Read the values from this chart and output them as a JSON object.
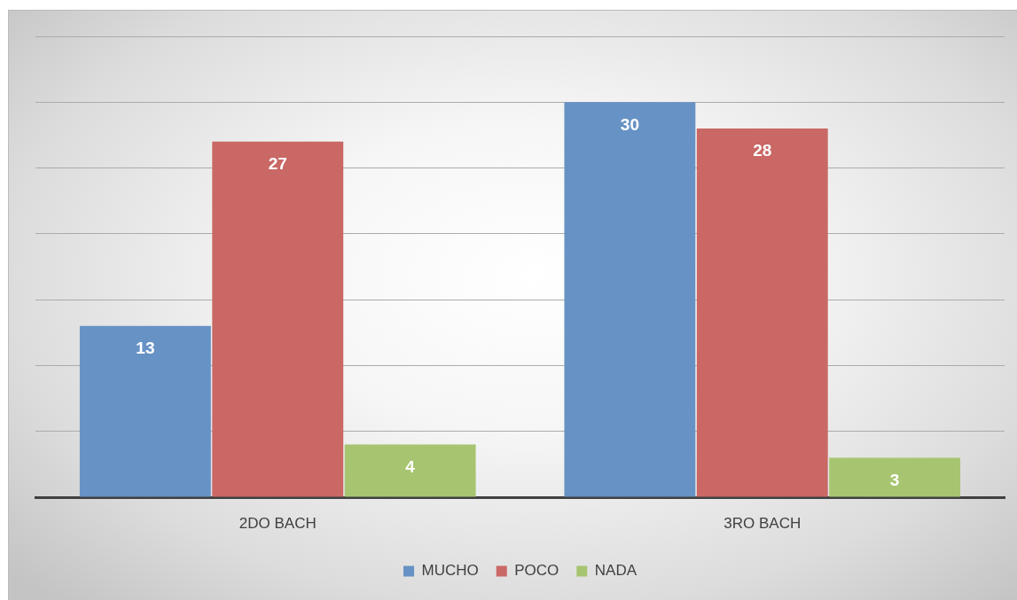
{
  "chart_data": {
    "type": "bar",
    "categories": [
      "2DO BACH",
      "3RO BACH"
    ],
    "series": [
      {
        "name": "MUCHO",
        "color": "#6792c5",
        "values": [
          13,
          30
        ]
      },
      {
        "name": "POCO",
        "color": "#c96865",
        "values": [
          27,
          28
        ]
      },
      {
        "name": "NADA",
        "color": "#a7c571",
        "values": [
          4,
          3
        ]
      }
    ],
    "ylim": [
      0,
      35
    ],
    "yticks": [
      {
        "value": 0,
        "label": null
      },
      {
        "value": 5,
        "label": null
      },
      {
        "value": 10,
        "label": null
      },
      {
        "value": 15,
        "label": null
      },
      {
        "value": 20,
        "label": null
      },
      {
        "value": 25,
        "label": null
      },
      {
        "value": 30,
        "label": null
      },
      {
        "value": 35,
        "label": null
      }
    ],
    "grid": "y",
    "tick_labels": "x",
    "legend": "bottom",
    "data_labels": true
  }
}
